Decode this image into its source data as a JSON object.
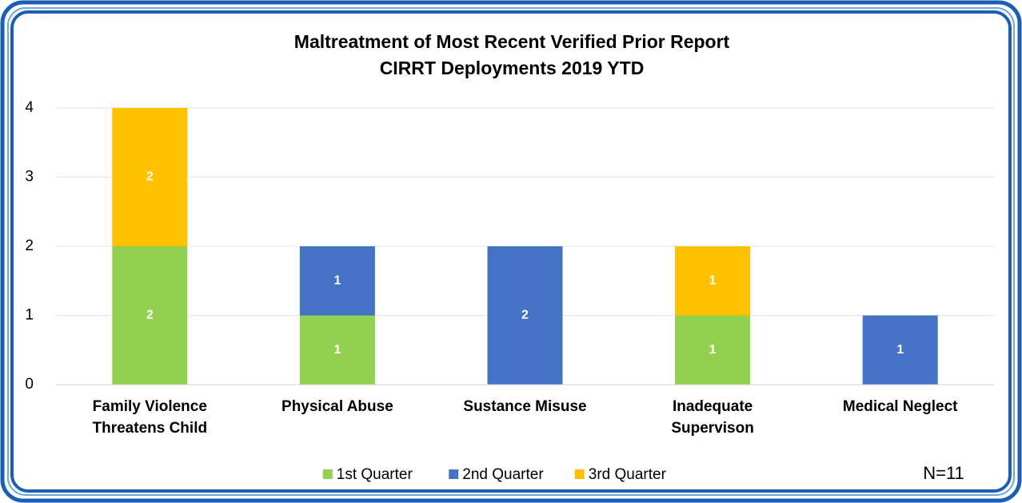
{
  "chart_data": {
    "type": "stacked_bar",
    "title": "Maltreatment of Most Recent Verified Prior Report",
    "subtitle": "CIRRT Deployments 2019 YTD",
    "categories": [
      "Family Violence\nThreatens Child",
      "Physical Abuse",
      "Sustance Misuse",
      "Inadequate\nSupervison",
      "Medical Neglect"
    ],
    "series": [
      {
        "name": "1st Quarter",
        "color": "#92d050",
        "values": [
          2,
          1,
          0,
          1,
          0
        ]
      },
      {
        "name": "2nd Quarter",
        "color": "#4472c4",
        "values": [
          0,
          1,
          2,
          0,
          1
        ]
      },
      {
        "name": "3rd Quarter",
        "color": "#ffc000",
        "values": [
          2,
          0,
          0,
          1,
          0
        ]
      }
    ],
    "ylim": [
      0,
      4
    ],
    "yticks": [
      0,
      1,
      2,
      3,
      4
    ],
    "grid": true,
    "legend": "bottom",
    "annotation": "N=11"
  }
}
